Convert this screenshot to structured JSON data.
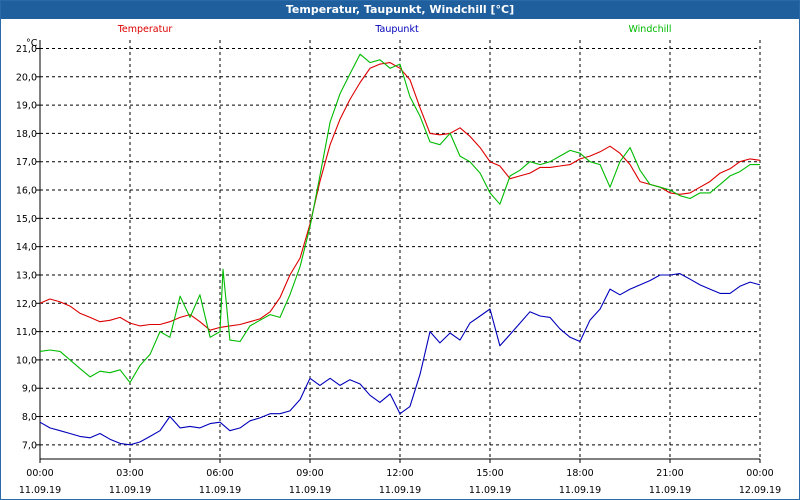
{
  "window": {
    "title": "Temperatur, Taupunkt, Windchill [°C]"
  },
  "chart_data": {
    "type": "line",
    "ylabel": "°C",
    "ylim": [
      6.5,
      21.3
    ],
    "yticks": [
      "7,0",
      "8,0",
      "9,0",
      "10,0",
      "11,0",
      "12,0",
      "13,0",
      "14,0",
      "15,0",
      "16,0",
      "17,0",
      "18,0",
      "19,0",
      "20,0",
      "21,0"
    ],
    "ytick_values": [
      7,
      8,
      9,
      10,
      11,
      12,
      13,
      14,
      15,
      16,
      17,
      18,
      19,
      20,
      21
    ],
    "xlim": [
      0,
      24
    ],
    "xticks": [
      {
        "time": "00:00",
        "date": "11.09.19",
        "hour": 0
      },
      {
        "time": "03:00",
        "date": "11.09.19",
        "hour": 3
      },
      {
        "time": "06:00",
        "date": "11.09.19",
        "hour": 6
      },
      {
        "time": "09:00",
        "date": "11.09.19",
        "hour": 9
      },
      {
        "time": "12:00",
        "date": "11.09.19",
        "hour": 12
      },
      {
        "time": "15:00",
        "date": "11.09.19",
        "hour": 15
      },
      {
        "time": "18:00",
        "date": "11.09.19",
        "hour": 18
      },
      {
        "time": "21:00",
        "date": "11.09.19",
        "hour": 21
      },
      {
        "time": "00:00",
        "date": "12.09.19",
        "hour": 24
      }
    ],
    "grid": true,
    "legend_placement": "top",
    "series": [
      {
        "name": "Temperatur",
        "color": "#dd0000",
        "points": [
          [
            0,
            12.0
          ],
          [
            0.33,
            12.15
          ],
          [
            0.67,
            12.05
          ],
          [
            1,
            11.9
          ],
          [
            1.33,
            11.65
          ],
          [
            1.67,
            11.5
          ],
          [
            2,
            11.35
          ],
          [
            2.33,
            11.4
          ],
          [
            2.67,
            11.5
          ],
          [
            3,
            11.3
          ],
          [
            3.33,
            11.2
          ],
          [
            3.67,
            11.25
          ],
          [
            4,
            11.25
          ],
          [
            4.33,
            11.35
          ],
          [
            4.67,
            11.5
          ],
          [
            5,
            11.6
          ],
          [
            5.33,
            11.35
          ],
          [
            5.67,
            11.05
          ],
          [
            6,
            11.15
          ],
          [
            6.33,
            11.2
          ],
          [
            6.67,
            11.25
          ],
          [
            7,
            11.35
          ],
          [
            7.33,
            11.45
          ],
          [
            7.67,
            11.7
          ],
          [
            8,
            12.2
          ],
          [
            8.33,
            13.0
          ],
          [
            8.67,
            13.6
          ],
          [
            9,
            14.8
          ],
          [
            9.33,
            16.3
          ],
          [
            9.67,
            17.6
          ],
          [
            10,
            18.5
          ],
          [
            10.33,
            19.2
          ],
          [
            10.67,
            19.8
          ],
          [
            11,
            20.3
          ],
          [
            11.33,
            20.45
          ],
          [
            11.67,
            20.5
          ],
          [
            12,
            20.3
          ],
          [
            12.33,
            19.9
          ],
          [
            12.67,
            18.9
          ],
          [
            13,
            18.0
          ],
          [
            13.33,
            17.95
          ],
          [
            13.67,
            18.0
          ],
          [
            14,
            18.2
          ],
          [
            14.33,
            17.9
          ],
          [
            14.67,
            17.5
          ],
          [
            15,
            17.0
          ],
          [
            15.33,
            16.85
          ],
          [
            15.67,
            16.4
          ],
          [
            16,
            16.5
          ],
          [
            16.33,
            16.6
          ],
          [
            16.67,
            16.8
          ],
          [
            17,
            16.8
          ],
          [
            17.33,
            16.85
          ],
          [
            17.67,
            16.9
          ],
          [
            18,
            17.1
          ],
          [
            18.33,
            17.2
          ],
          [
            18.67,
            17.35
          ],
          [
            19,
            17.55
          ],
          [
            19.33,
            17.3
          ],
          [
            19.67,
            16.9
          ],
          [
            20,
            16.3
          ],
          [
            20.33,
            16.2
          ],
          [
            20.67,
            16.1
          ],
          [
            21,
            15.9
          ],
          [
            21.33,
            15.85
          ],
          [
            21.67,
            15.9
          ],
          [
            22,
            16.1
          ],
          [
            22.33,
            16.3
          ],
          [
            22.67,
            16.6
          ],
          [
            23,
            16.75
          ],
          [
            23.33,
            17.0
          ],
          [
            23.67,
            17.1
          ],
          [
            24,
            17.05
          ]
        ]
      },
      {
        "name": "Taupunkt",
        "color": "#0000bb",
        "points": [
          [
            0,
            7.8
          ],
          [
            0.33,
            7.6
          ],
          [
            0.67,
            7.5
          ],
          [
            1,
            7.4
          ],
          [
            1.33,
            7.3
          ],
          [
            1.67,
            7.25
          ],
          [
            2,
            7.4
          ],
          [
            2.33,
            7.2
          ],
          [
            2.67,
            7.05
          ],
          [
            3,
            7.0
          ],
          [
            3.33,
            7.1
          ],
          [
            3.67,
            7.3
          ],
          [
            4,
            7.5
          ],
          [
            4.33,
            8.0
          ],
          [
            4.67,
            7.6
          ],
          [
            5,
            7.65
          ],
          [
            5.33,
            7.6
          ],
          [
            5.67,
            7.75
          ],
          [
            6,
            7.8
          ],
          [
            6.33,
            7.5
          ],
          [
            6.67,
            7.6
          ],
          [
            7,
            7.85
          ],
          [
            7.33,
            7.95
          ],
          [
            7.67,
            8.1
          ],
          [
            8,
            8.1
          ],
          [
            8.33,
            8.2
          ],
          [
            8.67,
            8.6
          ],
          [
            9,
            9.35
          ],
          [
            9.33,
            9.1
          ],
          [
            9.67,
            9.35
          ],
          [
            10,
            9.1
          ],
          [
            10.33,
            9.3
          ],
          [
            10.67,
            9.15
          ],
          [
            11,
            8.75
          ],
          [
            11.33,
            8.5
          ],
          [
            11.67,
            8.8
          ],
          [
            12,
            8.1
          ],
          [
            12.33,
            8.35
          ],
          [
            12.67,
            9.5
          ],
          [
            13,
            11.0
          ],
          [
            13.33,
            10.6
          ],
          [
            13.67,
            10.95
          ],
          [
            14,
            10.7
          ],
          [
            14.33,
            11.3
          ],
          [
            14.67,
            11.55
          ],
          [
            15,
            11.8
          ],
          [
            15.33,
            10.5
          ],
          [
            15.67,
            10.9
          ],
          [
            16,
            11.3
          ],
          [
            16.33,
            11.7
          ],
          [
            16.67,
            11.55
          ],
          [
            17,
            11.5
          ],
          [
            17.33,
            11.1
          ],
          [
            17.67,
            10.8
          ],
          [
            18,
            10.65
          ],
          [
            18.33,
            11.4
          ],
          [
            18.67,
            11.8
          ],
          [
            19,
            12.5
          ],
          [
            19.33,
            12.3
          ],
          [
            19.67,
            12.5
          ],
          [
            20,
            12.65
          ],
          [
            20.33,
            12.8
          ],
          [
            20.67,
            13.0
          ],
          [
            21,
            13.0
          ],
          [
            21.33,
            13.05
          ],
          [
            21.67,
            12.85
          ],
          [
            22,
            12.65
          ],
          [
            22.33,
            12.5
          ],
          [
            22.67,
            12.35
          ],
          [
            23,
            12.35
          ],
          [
            23.33,
            12.6
          ],
          [
            23.67,
            12.75
          ],
          [
            24,
            12.65
          ]
        ]
      },
      {
        "name": "Windchill",
        "color": "#00bb00",
        "points": [
          [
            0,
            10.3
          ],
          [
            0.33,
            10.35
          ],
          [
            0.67,
            10.3
          ],
          [
            1,
            10.0
          ],
          [
            1.33,
            9.7
          ],
          [
            1.67,
            9.4
          ],
          [
            2,
            9.6
          ],
          [
            2.33,
            9.55
          ],
          [
            2.67,
            9.65
          ],
          [
            3,
            9.2
          ],
          [
            3.33,
            9.8
          ],
          [
            3.67,
            10.2
          ],
          [
            4,
            11.0
          ],
          [
            4.33,
            10.8
          ],
          [
            4.67,
            12.25
          ],
          [
            5,
            11.5
          ],
          [
            5.33,
            12.3
          ],
          [
            5.67,
            10.8
          ],
          [
            6,
            11.0
          ],
          [
            6.1,
            13.2
          ],
          [
            6.33,
            10.7
          ],
          [
            6.67,
            10.65
          ],
          [
            7,
            11.2
          ],
          [
            7.33,
            11.4
          ],
          [
            7.67,
            11.6
          ],
          [
            8,
            11.5
          ],
          [
            8.33,
            12.3
          ],
          [
            8.67,
            13.3
          ],
          [
            9,
            14.7
          ],
          [
            9.33,
            16.5
          ],
          [
            9.67,
            18.4
          ],
          [
            10,
            19.4
          ],
          [
            10.33,
            20.1
          ],
          [
            10.67,
            20.8
          ],
          [
            11,
            20.5
          ],
          [
            11.33,
            20.6
          ],
          [
            11.67,
            20.3
          ],
          [
            12,
            20.45
          ],
          [
            12.33,
            19.3
          ],
          [
            12.67,
            18.6
          ],
          [
            13,
            17.7
          ],
          [
            13.33,
            17.6
          ],
          [
            13.67,
            18.0
          ],
          [
            14,
            17.2
          ],
          [
            14.33,
            17.0
          ],
          [
            14.67,
            16.6
          ],
          [
            15,
            15.9
          ],
          [
            15.33,
            15.5
          ],
          [
            15.67,
            16.5
          ],
          [
            16,
            16.7
          ],
          [
            16.33,
            17.0
          ],
          [
            16.67,
            16.9
          ],
          [
            17,
            17.0
          ],
          [
            17.33,
            17.2
          ],
          [
            17.67,
            17.4
          ],
          [
            18,
            17.3
          ],
          [
            18.33,
            17.0
          ],
          [
            18.67,
            16.9
          ],
          [
            19,
            16.1
          ],
          [
            19.33,
            17.0
          ],
          [
            19.67,
            17.5
          ],
          [
            20,
            16.7
          ],
          [
            20.33,
            16.2
          ],
          [
            20.67,
            16.1
          ],
          [
            21,
            16.0
          ],
          [
            21.33,
            15.8
          ],
          [
            21.67,
            15.7
          ],
          [
            22,
            15.9
          ],
          [
            22.33,
            15.9
          ],
          [
            22.67,
            16.2
          ],
          [
            23,
            16.5
          ],
          [
            23.33,
            16.65
          ],
          [
            23.67,
            16.9
          ],
          [
            24,
            16.9
          ]
        ]
      }
    ]
  }
}
